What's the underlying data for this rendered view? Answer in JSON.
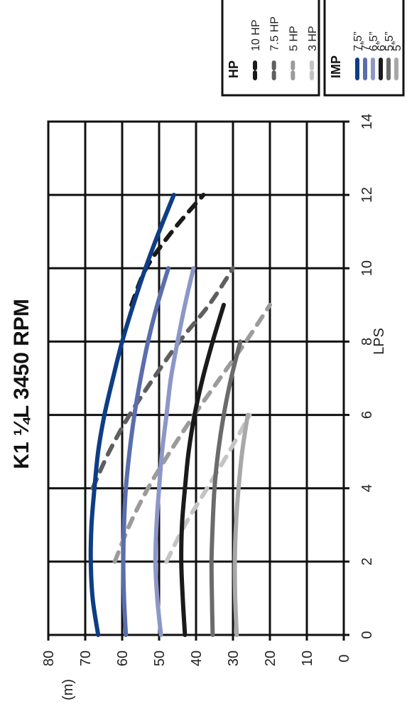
{
  "chart_data": {
    "type": "line",
    "title": "K1 ¼L 3450 RPM",
    "xlabel": "LPS",
    "ylabel": "(m)",
    "xlim": [
      0,
      14
    ],
    "ylim": [
      0,
      80
    ],
    "x_ticks": [
      "0",
      "2",
      "4",
      "6",
      "8",
      "10",
      "12",
      "14"
    ],
    "y_ticks": [
      "0",
      "10",
      "20",
      "30",
      "40",
      "50",
      "60",
      "70",
      "80"
    ],
    "grid": true,
    "orientation": "rotated 90 degrees counter-clockwise",
    "legends": [
      {
        "title": "IMP",
        "entries": [
          {
            "label": "7.5”",
            "color": "#0d3d85",
            "style": "solid"
          },
          {
            "label": "7”",
            "color": "#5a6ead",
            "style": "solid"
          },
          {
            "label": "6.5”",
            "color": "#8c97c8",
            "style": "solid"
          },
          {
            "label": "6”",
            "color": "#1a1a1a",
            "style": "solid"
          },
          {
            "label": "5.5”",
            "color": "#6b6b6b",
            "style": "solid"
          },
          {
            "label": "5”",
            "color": "#a8a8a8",
            "style": "solid"
          }
        ]
      },
      {
        "title": "HP",
        "entries": [
          {
            "label": "10 HP",
            "color": "#1a1a1a",
            "style": "dashed"
          },
          {
            "label": "7.5 HP",
            "color": "#5f5f5f",
            "style": "dashed"
          },
          {
            "label": "5 HP",
            "color": "#9b9b9b",
            "style": "dashed"
          },
          {
            "label": "3 HP",
            "color": "#c4c4c4",
            "style": "dashed"
          }
        ]
      }
    ],
    "series": [
      {
        "name": "7.5”",
        "color": "#0d3d85",
        "style": "solid",
        "x": [
          0,
          1,
          2,
          3,
          4,
          5,
          6,
          7,
          8,
          9,
          10,
          11,
          12
        ],
        "y": [
          66.5,
          68,
          68.5,
          68.3,
          67.5,
          66.5,
          64.8,
          62.5,
          60,
          57,
          53.7,
          50,
          46
        ]
      },
      {
        "name": "7”",
        "color": "#5a6ead",
        "style": "solid",
        "x": [
          0,
          1,
          2,
          3,
          4,
          5,
          6,
          7,
          8,
          9,
          10
        ],
        "y": [
          59,
          59.5,
          59.7,
          59.5,
          59,
          58,
          56.7,
          55,
          53,
          50.5,
          47.5
        ]
      },
      {
        "name": "6.5”",
        "color": "#8c97c8",
        "style": "solid",
        "x": [
          0,
          1,
          2,
          3,
          4,
          5,
          6,
          7,
          8,
          9,
          10
        ],
        "y": [
          49.5,
          50.5,
          51,
          50.7,
          50,
          49.2,
          48,
          46.8,
          45,
          43,
          40.7
        ]
      },
      {
        "name": "6”",
        "color": "#1a1a1a",
        "style": "solid",
        "x": [
          0,
          1,
          2,
          3,
          4,
          5,
          6,
          7,
          8,
          9
        ],
        "y": [
          43,
          43.6,
          44,
          43.8,
          43,
          42,
          40.4,
          38.2,
          35.5,
          32.5
        ]
      },
      {
        "name": "5.5”",
        "color": "#6b6b6b",
        "style": "solid",
        "x": [
          0,
          1,
          2,
          3,
          4,
          5,
          6,
          7,
          8
        ],
        "y": [
          35.5,
          35.7,
          35.8,
          35.5,
          35,
          34,
          32.5,
          30.5,
          28
        ]
      },
      {
        "name": "5”",
        "color": "#a8a8a8",
        "style": "solid",
        "x": [
          0,
          1,
          2,
          3,
          4,
          5,
          6
        ],
        "y": [
          29,
          29.4,
          29.5,
          29.2,
          28.5,
          27.5,
          26
        ]
      },
      {
        "name": "10 HP",
        "color": "#1a1a1a",
        "style": "dashed",
        "x": [
          9,
          10,
          11,
          12
        ],
        "y": [
          57.5,
          53.5,
          46.5,
          38
        ]
      },
      {
        "name": "7.5 HP",
        "color": "#5f5f5f",
        "style": "dashed",
        "x": [
          4,
          5,
          6,
          7,
          8,
          9,
          10
        ],
        "y": [
          68,
          63.5,
          58,
          51.5,
          44.5,
          36.5,
          30
        ]
      },
      {
        "name": "5 HP",
        "color": "#9b9b9b",
        "style": "dashed",
        "x": [
          2,
          3,
          4,
          5,
          6,
          7,
          8,
          9
        ],
        "y": [
          62,
          58,
          53,
          47,
          40.5,
          33.5,
          26.5,
          20
        ]
      },
      {
        "name": "3 HP",
        "color": "#c4c4c4",
        "style": "dashed",
        "x": [
          2,
          3,
          4,
          5,
          6
        ],
        "y": [
          48,
          43,
          37,
          31,
          25.5
        ]
      }
    ]
  }
}
